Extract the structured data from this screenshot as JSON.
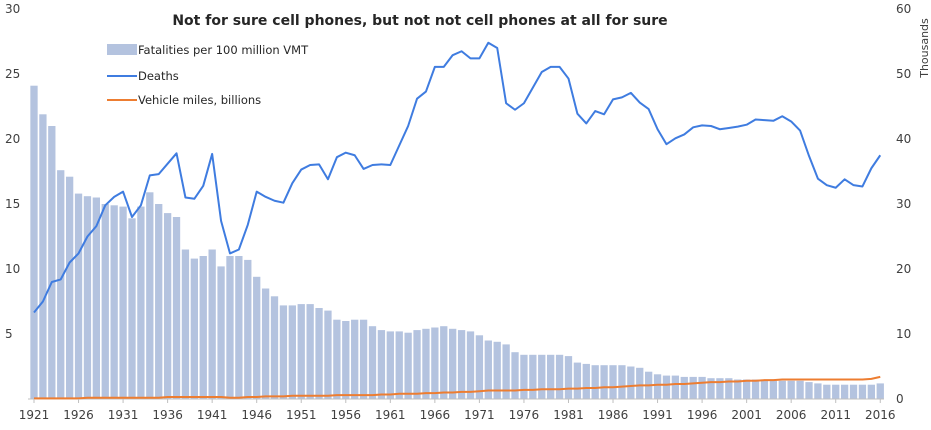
{
  "chart_data": {
    "type": "bar",
    "title": "Not for sure cell phones, but not not cell phones at all for sure",
    "y_left": {
      "ylim": [
        0,
        30
      ],
      "ticks": [
        5,
        10,
        15,
        20,
        25,
        30
      ],
      "ylabel": ""
    },
    "y_right": {
      "ylim": [
        0,
        60
      ],
      "ticks": [
        0,
        10,
        20,
        30,
        40,
        50,
        60
      ],
      "ylabel": "Thousands"
    },
    "x": [
      1921,
      1922,
      1923,
      1924,
      1925,
      1926,
      1927,
      1928,
      1929,
      1930,
      1931,
      1932,
      1933,
      1934,
      1935,
      1936,
      1937,
      1938,
      1939,
      1940,
      1941,
      1942,
      1943,
      1944,
      1945,
      1946,
      1947,
      1948,
      1949,
      1950,
      1951,
      1952,
      1953,
      1954,
      1955,
      1956,
      1957,
      1958,
      1959,
      1960,
      1961,
      1962,
      1963,
      1964,
      1965,
      1966,
      1967,
      1968,
      1969,
      1970,
      1971,
      1972,
      1973,
      1974,
      1975,
      1976,
      1977,
      1978,
      1979,
      1980,
      1981,
      1982,
      1983,
      1984,
      1985,
      1986,
      1987,
      1988,
      1989,
      1990,
      1991,
      1992,
      1993,
      1994,
      1995,
      1996,
      1997,
      1998,
      1999,
      2000,
      2001,
      2002,
      2003,
      2004,
      2005,
      2006,
      2007,
      2008,
      2009,
      2010,
      2011,
      2012,
      2013,
      2014,
      2015,
      2016
    ],
    "x_tick_labels": [
      "1921",
      "1926",
      "1931",
      "1936",
      "1941",
      "1946",
      "1951",
      "1956",
      "1961",
      "1966",
      "1971",
      "1976",
      "1981",
      "1986",
      "1991",
      "1996",
      "2001",
      "2006",
      "2011",
      "2016"
    ],
    "legend_position": "top-left",
    "grid": false,
    "series": [
      {
        "name": "Fatalities per 100 million VMT",
        "type": "bar",
        "axis": "left",
        "color": "#b4c3df",
        "values": [
          24.1,
          21.9,
          21.0,
          17.6,
          17.1,
          15.8,
          15.6,
          15.5,
          15.0,
          14.9,
          14.8,
          13.9,
          14.8,
          15.9,
          15.0,
          14.3,
          14.0,
          11.5,
          10.8,
          11.0,
          11.5,
          10.2,
          11.0,
          11.0,
          10.7,
          9.4,
          8.5,
          7.9,
          7.2,
          7.2,
          7.3,
          7.3,
          7.0,
          6.8,
          6.1,
          6.0,
          6.1,
          6.1,
          5.6,
          5.3,
          5.2,
          5.2,
          5.1,
          5.3,
          5.4,
          5.5,
          5.6,
          5.4,
          5.3,
          5.2,
          4.9,
          4.5,
          4.4,
          4.2,
          3.6,
          3.4,
          3.4,
          3.4,
          3.4,
          3.4,
          3.3,
          2.8,
          2.7,
          2.6,
          2.6,
          2.6,
          2.6,
          2.5,
          2.4,
          2.1,
          1.9,
          1.8,
          1.8,
          1.7,
          1.7,
          1.7,
          1.6,
          1.6,
          1.6,
          1.5,
          1.5,
          1.5,
          1.5,
          1.4,
          1.4,
          1.4,
          1.4,
          1.3,
          1.2,
          1.1,
          1.1,
          1.1,
          1.1,
          1.1,
          1.1,
          1.2
        ]
      },
      {
        "name": "Deaths",
        "type": "line",
        "axis": "right",
        "color": "#3f7ce0",
        "values": [
          13.3,
          15.0,
          18.0,
          18.4,
          21.0,
          22.4,
          25.0,
          26.6,
          29.8,
          31.1,
          31.9,
          28.0,
          29.8,
          34.4,
          34.6,
          36.2,
          37.8,
          31.0,
          30.8,
          32.8,
          37.7,
          27.4,
          22.4,
          23.0,
          26.8,
          31.9,
          31.1,
          30.5,
          30.2,
          33.2,
          35.3,
          36.0,
          36.1,
          33.8,
          37.2,
          37.9,
          37.5,
          35.4,
          36.0,
          36.1,
          36.0,
          39.0,
          42.0,
          46.2,
          47.3,
          51.1,
          51.1,
          52.9,
          53.5,
          52.4,
          52.4,
          54.8,
          54.0,
          45.5,
          44.5,
          45.5,
          47.9,
          50.3,
          51.1,
          51.1,
          49.3,
          43.9,
          42.4,
          44.3,
          43.8,
          46.1,
          46.4,
          47.1,
          45.6,
          44.6,
          41.5,
          39.2,
          40.1,
          40.7,
          41.8,
          42.1,
          42.0,
          41.5,
          41.7,
          41.9,
          42.2,
          43.0,
          42.9,
          42.8,
          43.5,
          42.7,
          41.3,
          37.4,
          33.9,
          32.9,
          32.5,
          33.8,
          32.9,
          32.7,
          35.5,
          37.5
        ]
      },
      {
        "name": "Vehicle miles, billions",
        "type": "line",
        "axis": "right",
        "color": "#ed7d31",
        "values": [
          0.1,
          0.1,
          0.1,
          0.1,
          0.1,
          0.1,
          0.2,
          0.2,
          0.2,
          0.2,
          0.2,
          0.2,
          0.2,
          0.2,
          0.2,
          0.3,
          0.3,
          0.3,
          0.3,
          0.3,
          0.3,
          0.3,
          0.2,
          0.2,
          0.3,
          0.3,
          0.4,
          0.4,
          0.4,
          0.5,
          0.5,
          0.5,
          0.5,
          0.5,
          0.6,
          0.6,
          0.6,
          0.6,
          0.6,
          0.7,
          0.7,
          0.8,
          0.8,
          0.8,
          0.9,
          0.9,
          1.0,
          1.0,
          1.1,
          1.1,
          1.2,
          1.3,
          1.3,
          1.3,
          1.3,
          1.4,
          1.4,
          1.5,
          1.5,
          1.5,
          1.6,
          1.6,
          1.7,
          1.7,
          1.8,
          1.8,
          1.9,
          2.0,
          2.1,
          2.1,
          2.2,
          2.2,
          2.3,
          2.3,
          2.4,
          2.5,
          2.6,
          2.6,
          2.7,
          2.7,
          2.8,
          2.8,
          2.9,
          2.9,
          3.0,
          3.0,
          3.0,
          3.0,
          3.0,
          3.0,
          3.0,
          3.0,
          3.0,
          3.0,
          3.1,
          3.4
        ]
      }
    ]
  }
}
